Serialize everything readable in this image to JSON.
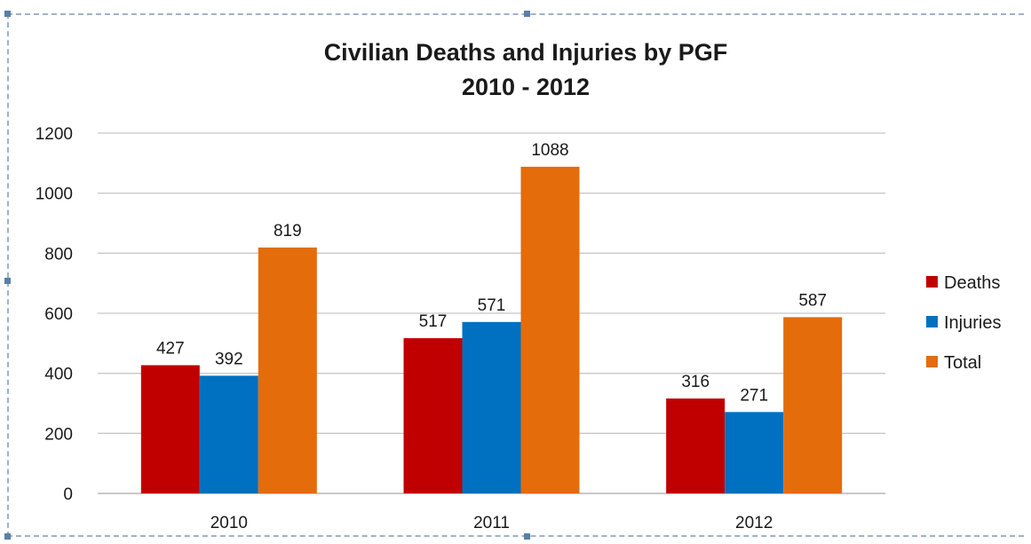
{
  "chart_data": {
    "type": "bar",
    "title": "Civilian Deaths and Injuries by PGF",
    "subtitle": "2010 - 2012",
    "categories": [
      "2010",
      "2011",
      "2012"
    ],
    "series": [
      {
        "name": "Deaths",
        "values": [
          427,
          517,
          316
        ],
        "color": "#c00000"
      },
      {
        "name": "Injuries",
        "values": [
          392,
          571,
          271
        ],
        "color": "#0070c0"
      },
      {
        "name": "Total",
        "values": [
          819,
          1088,
          587
        ],
        "color": "#e46c0a"
      }
    ],
    "ylim": [
      0,
      1200
    ],
    "yticks": [
      "0",
      "200",
      "400",
      "600",
      "800",
      "1000",
      "1200"
    ],
    "grid": true,
    "legend_position": "right"
  }
}
